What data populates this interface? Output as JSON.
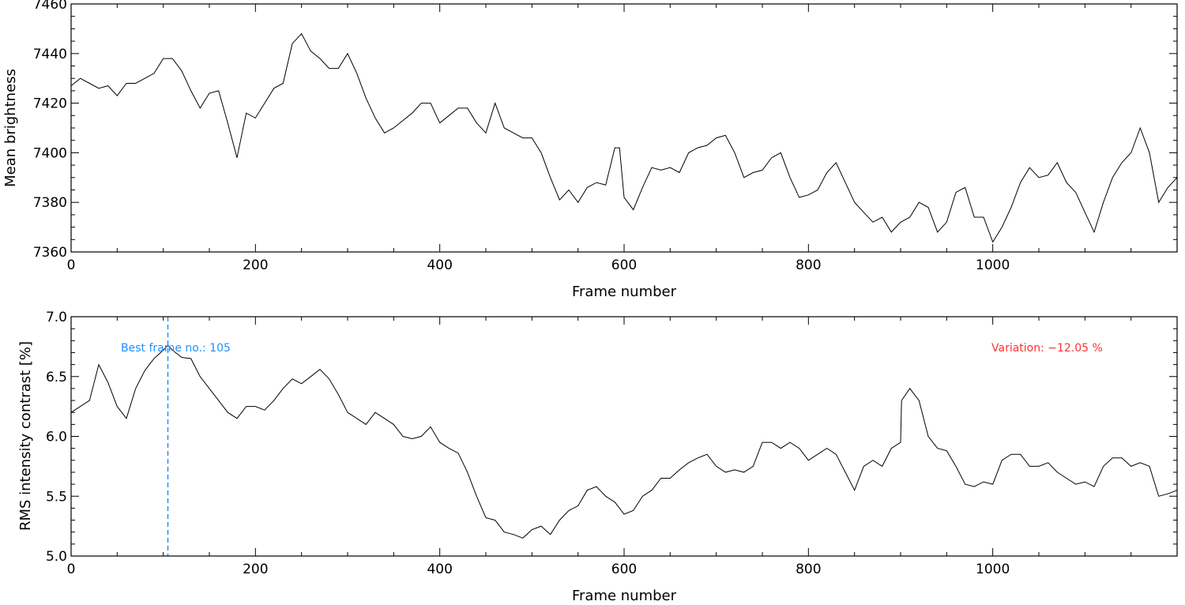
{
  "chart_data": [
    {
      "type": "line",
      "xlabel": "Frame number",
      "ylabel": "Mean brightness",
      "xlim": [
        0,
        1200
      ],
      "ylim": [
        7360,
        7460
      ],
      "xticks": [
        0,
        200,
        400,
        600,
        800,
        1000
      ],
      "xtick_labels": [
        "0",
        "200",
        "400",
        "600",
        "800",
        "1000"
      ],
      "yticks": [
        7360,
        7380,
        7400,
        7420,
        7440,
        7460
      ],
      "ytick_labels": [
        "7360",
        "7380",
        "7400",
        "7420",
        "7440",
        "7460"
      ],
      "x": [
        0,
        10,
        20,
        30,
        40,
        50,
        60,
        70,
        80,
        90,
        100,
        110,
        120,
        130,
        140,
        150,
        160,
        170,
        180,
        190,
        200,
        210,
        220,
        230,
        240,
        250,
        260,
        270,
        280,
        290,
        300,
        310,
        320,
        330,
        340,
        350,
        360,
        370,
        380,
        390,
        400,
        410,
        420,
        430,
        440,
        450,
        460,
        470,
        480,
        490,
        500,
        510,
        520,
        530,
        540,
        550,
        560,
        570,
        580,
        590,
        595,
        600,
        610,
        620,
        630,
        640,
        650,
        660,
        670,
        680,
        690,
        700,
        710,
        720,
        730,
        740,
        750,
        760,
        770,
        780,
        790,
        800,
        810,
        820,
        830,
        840,
        850,
        860,
        870,
        880,
        890,
        900,
        910,
        920,
        930,
        940,
        950,
        960,
        970,
        980,
        990,
        1000,
        1010,
        1020,
        1030,
        1040,
        1050,
        1060,
        1070,
        1080,
        1090,
        1100,
        1110,
        1120,
        1130,
        1140,
        1150,
        1160,
        1170,
        1180,
        1190,
        1200
      ],
      "series": [
        {
          "values": [
            7427,
            7430,
            7428,
            7426,
            7427,
            7423,
            7428,
            7428,
            7430,
            7432,
            7438,
            7438,
            7433,
            7425,
            7418,
            7424,
            7425,
            7412,
            7398,
            7416,
            7414,
            7420,
            7426,
            7428,
            7444,
            7448,
            7441,
            7438,
            7434,
            7434,
            7440,
            7432,
            7422,
            7414,
            7408,
            7410,
            7413,
            7416,
            7420,
            7420,
            7412,
            7415,
            7418,
            7418,
            7412,
            7408,
            7420,
            7410,
            7408,
            7406,
            7406,
            7400,
            7390,
            7381,
            7385,
            7380,
            7386,
            7388,
            7387,
            7402,
            7402,
            7382,
            7377,
            7386,
            7394,
            7393,
            7394,
            7392,
            7400,
            7402,
            7403,
            7406,
            7407,
            7400,
            7390,
            7392,
            7393,
            7398,
            7400,
            7390,
            7382,
            7383,
            7385,
            7392,
            7396,
            7388,
            7380,
            7376,
            7372,
            7374,
            7368,
            7372,
            7374,
            7380,
            7378,
            7368,
            7372,
            7384,
            7386,
            7374,
            7374,
            7364,
            7370,
            7378,
            7388,
            7394,
            7390,
            7391,
            7396,
            7388,
            7384,
            7376,
            7368,
            7380,
            7390,
            7396,
            7400,
            7410,
            7400,
            7380,
            7386,
            7390
          ]
        }
      ]
    },
    {
      "type": "line",
      "xlabel": "Frame number",
      "ylabel": "RMS intensity contrast [%]",
      "xlim": [
        0,
        1200
      ],
      "ylim": [
        5.0,
        7.0
      ],
      "xticks": [
        0,
        200,
        400,
        600,
        800,
        1000
      ],
      "xtick_labels": [
        "0",
        "200",
        "400",
        "600",
        "800",
        "1000"
      ],
      "yticks": [
        5.0,
        5.5,
        6.0,
        6.5,
        7.0
      ],
      "ytick_labels": [
        "5.0",
        "5.5",
        "6.0",
        "6.5",
        "7.0"
      ],
      "x": [
        0,
        10,
        20,
        30,
        40,
        50,
        60,
        70,
        80,
        90,
        100,
        105,
        110,
        120,
        130,
        140,
        150,
        160,
        170,
        180,
        190,
        200,
        210,
        220,
        230,
        240,
        250,
        260,
        270,
        280,
        290,
        300,
        310,
        320,
        330,
        340,
        350,
        360,
        370,
        380,
        390,
        400,
        410,
        420,
        430,
        440,
        450,
        460,
        470,
        480,
        490,
        500,
        510,
        520,
        530,
        540,
        550,
        560,
        570,
        580,
        590,
        600,
        610,
        620,
        630,
        640,
        650,
        660,
        670,
        680,
        690,
        700,
        710,
        720,
        730,
        740,
        750,
        760,
        770,
        780,
        790,
        800,
        810,
        820,
        830,
        840,
        850,
        860,
        870,
        880,
        890,
        900,
        901,
        910,
        920,
        930,
        940,
        950,
        960,
        970,
        980,
        990,
        1000,
        1010,
        1020,
        1030,
        1040,
        1050,
        1060,
        1070,
        1080,
        1090,
        1100,
        1110,
        1120,
        1130,
        1140,
        1150,
        1160,
        1170,
        1180,
        1190,
        1200
      ],
      "series": [
        {
          "values": [
            6.2,
            6.25,
            6.3,
            6.6,
            6.45,
            6.25,
            6.15,
            6.4,
            6.55,
            6.65,
            6.72,
            6.76,
            6.72,
            6.66,
            6.65,
            6.5,
            6.4,
            6.3,
            6.2,
            6.15,
            6.25,
            6.25,
            6.22,
            6.3,
            6.4,
            6.48,
            6.44,
            6.5,
            6.56,
            6.48,
            6.35,
            6.2,
            6.15,
            6.1,
            6.2,
            6.15,
            6.1,
            6.0,
            5.98,
            6.0,
            6.08,
            5.95,
            5.9,
            5.86,
            5.7,
            5.5,
            5.32,
            5.3,
            5.2,
            5.18,
            5.15,
            5.22,
            5.25,
            5.18,
            5.3,
            5.38,
            5.42,
            5.55,
            5.58,
            5.5,
            5.45,
            5.35,
            5.38,
            5.5,
            5.55,
            5.65,
            5.65,
            5.72,
            5.78,
            5.82,
            5.85,
            5.75,
            5.7,
            5.72,
            5.7,
            5.75,
            5.95,
            5.95,
            5.9,
            5.95,
            5.9,
            5.8,
            5.85,
            5.9,
            5.85,
            5.7,
            5.55,
            5.75,
            5.8,
            5.75,
            5.9,
            5.95,
            6.3,
            6.4,
            6.3,
            6.0,
            5.9,
            5.88,
            5.75,
            5.6,
            5.58,
            5.62,
            5.6,
            5.8,
            5.85,
            5.85,
            5.75,
            5.75,
            5.78,
            5.7,
            5.65,
            5.6,
            5.62,
            5.58,
            5.75,
            5.82,
            5.82,
            5.75,
            5.78,
            5.75,
            5.5,
            5.52,
            5.55
          ]
        }
      ],
      "best_frame": 105,
      "annotations": {
        "best_frame_label": "Best frame no.: 105",
        "variation_label": "Variation: −12.05 %"
      },
      "colors": {
        "best_frame": "#1e90ff",
        "variation": "#ff3030"
      }
    }
  ]
}
